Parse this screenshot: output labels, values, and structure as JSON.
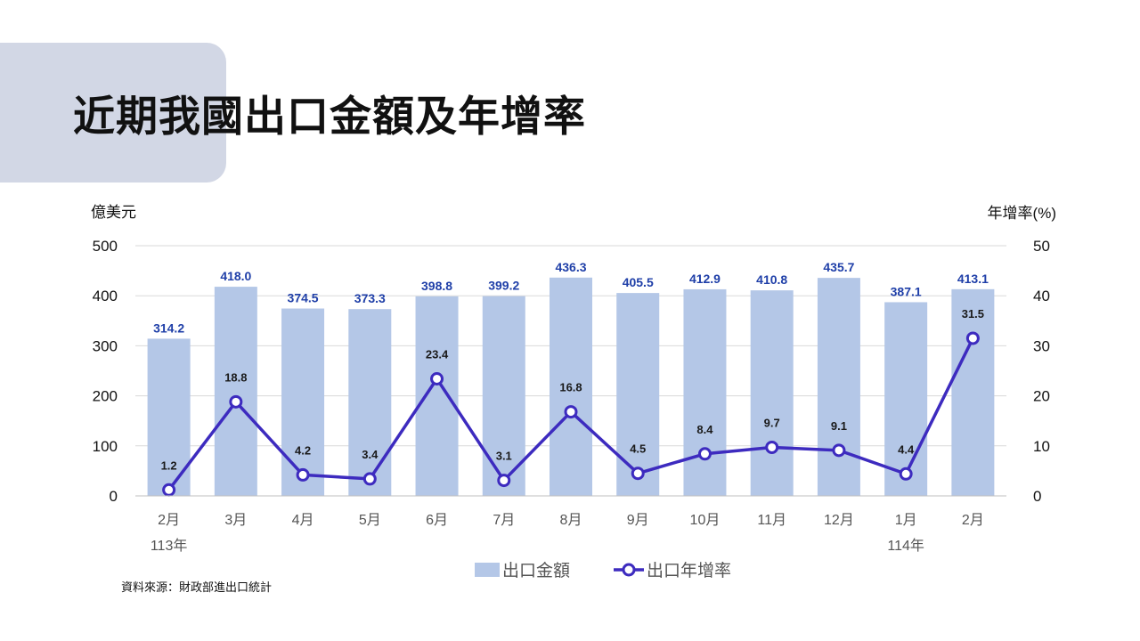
{
  "page": {
    "title": "近期我國出口金額及年增率",
    "source": "資料來源：財政部進出口統計"
  },
  "colors": {
    "bar": "#b4c7e7",
    "line": "#3d2bbf",
    "bar_label": "#1f3fa8",
    "line_label": "#1a1a1a",
    "grid": "#d9d9d9",
    "title_bg": "#d2d7e5"
  },
  "chart_data": {
    "type": "bar",
    "categories": [
      "2月",
      "3月",
      "4月",
      "5月",
      "6月",
      "7月",
      "8月",
      "9月",
      "10月",
      "11月",
      "12月",
      "1月",
      "2月"
    ],
    "year_labels": [
      "113年",
      "",
      "",
      "",
      "",
      "",
      "",
      "",
      "",
      "",
      "",
      "114年",
      ""
    ],
    "series": [
      {
        "name": "出口金額",
        "type": "bar",
        "axis": "left",
        "values": [
          314.2,
          418.0,
          374.5,
          373.3,
          398.8,
          399.2,
          436.3,
          405.5,
          412.9,
          410.8,
          435.7,
          387.1,
          413.1
        ],
        "labels": [
          "314.2",
          "418.0",
          "374.5",
          "373.3",
          "398.8",
          "399.2",
          "436.3",
          "405.5",
          "412.9",
          "410.8",
          "435.7",
          "387.1",
          "413.1"
        ]
      },
      {
        "name": "出口年增率",
        "type": "line",
        "axis": "right",
        "values": [
          1.2,
          18.8,
          4.2,
          3.4,
          23.4,
          3.1,
          16.8,
          4.5,
          8.4,
          9.7,
          9.1,
          4.4,
          31.5
        ],
        "labels": [
          "1.2",
          "18.8",
          "4.2",
          "3.4",
          "23.4",
          "3.1",
          "16.8",
          "4.5",
          "8.4",
          "9.7",
          "9.1",
          "4.4",
          "31.5"
        ]
      }
    ],
    "y_left": {
      "label": "億美元",
      "min": 0,
      "max": 500,
      "ticks": [
        "0",
        "100",
        "200",
        "300",
        "400",
        "500"
      ]
    },
    "y_right": {
      "label": "年增率(%)",
      "min": 0,
      "max": 50,
      "ticks": [
        "0",
        "10",
        "20",
        "30",
        "40",
        "50"
      ]
    },
    "grid": true,
    "legend_position": "bottom"
  }
}
